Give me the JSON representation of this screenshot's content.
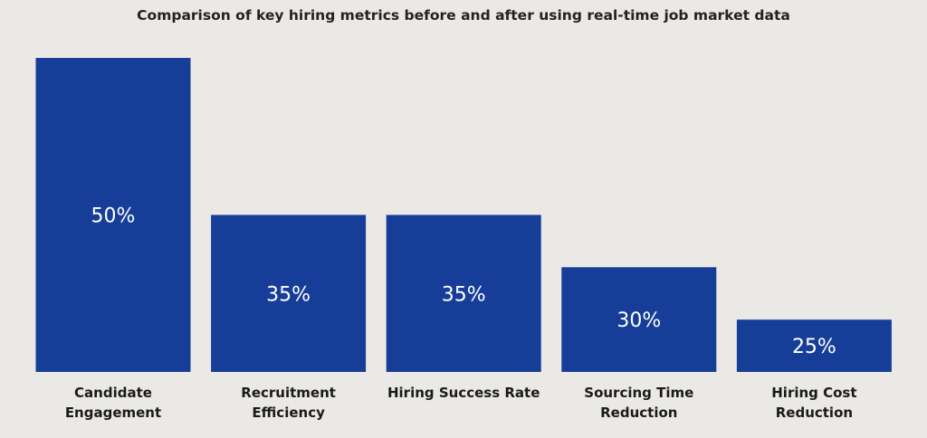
{
  "chart_data": {
    "type": "bar",
    "title": "Comparison of key hiring metrics before and after using real-time job market data",
    "categories": [
      [
        "Candidate",
        "Engagement"
      ],
      [
        "Recruitment",
        "Efficiency"
      ],
      [
        "Hiring Success Rate"
      ],
      [
        "Sourcing Time",
        "Reduction"
      ],
      [
        "Hiring Cost",
        "Reduction"
      ]
    ],
    "values": [
      50,
      35,
      35,
      30,
      25
    ],
    "value_labels": [
      "50%",
      "35%",
      "35%",
      "30%",
      "25%"
    ],
    "unit": "%",
    "xlabel": "",
    "ylabel": "",
    "ylim": [
      20,
      50
    ],
    "grid": false,
    "bar_color": "#163e99"
  }
}
